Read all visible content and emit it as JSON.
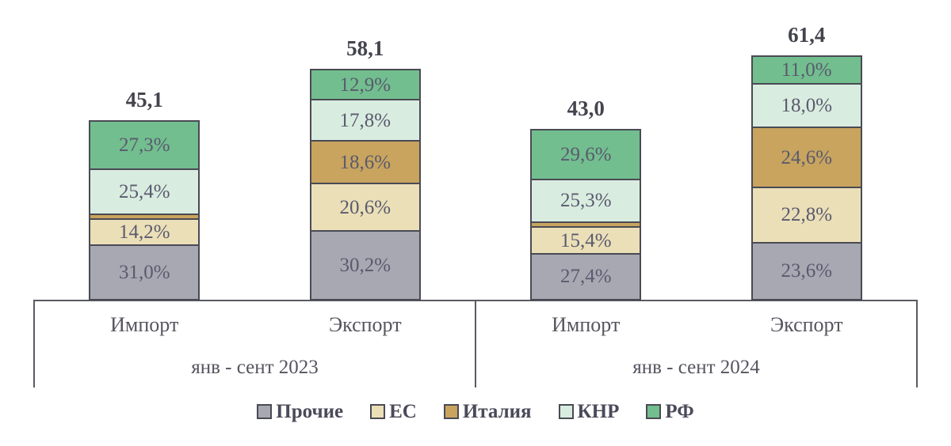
{
  "chart_data": {
    "type": "bar",
    "stacked": true,
    "value_format": "percent-inside, total-above",
    "series": [
      "Прочие",
      "ЕС",
      "Италия",
      "КНР",
      "РФ"
    ],
    "series_colors": {
      "Прочие": "#a8a8b3",
      "ЕС": "#ebdfb8",
      "Италия": "#c8a45e",
      "КНР": "#d9ece0",
      "РФ": "#72be8f"
    },
    "colors": {
      "segment_border": "#4a4a54",
      "segment_text": "#5a5a6e",
      "total_text": "#44444e",
      "axis_line": "#5a5a62",
      "axis_text": "#55555f",
      "legend_text": "#4a4a5a"
    },
    "legend": {
      "position": "bottom",
      "entries": [
        "Прочие",
        "ЕС",
        "Италия",
        "КНР",
        "РФ"
      ]
    },
    "groups": [
      {
        "label": "янв - сент 2023",
        "bars": [
          {
            "category": "Импорт",
            "total": 45.1,
            "total_label": "45,1",
            "segments": [
              {
                "name": "Прочие",
                "pct": 31.0,
                "label": "31,0%"
              },
              {
                "name": "ЕС",
                "pct": 14.2,
                "label": "14,2%"
              },
              {
                "name": "Италия",
                "pct": 2.1,
                "label": ""
              },
              {
                "name": "КНР",
                "pct": 25.4,
                "label": "25,4%"
              },
              {
                "name": "РФ",
                "pct": 27.3,
                "label": "27,3%"
              }
            ]
          },
          {
            "category": "Экспорт",
            "total": 58.1,
            "total_label": "58,1",
            "segments": [
              {
                "name": "Прочие",
                "pct": 30.2,
                "label": "30,2%"
              },
              {
                "name": "ЕС",
                "pct": 20.6,
                "label": "20,6%"
              },
              {
                "name": "Италия",
                "pct": 18.6,
                "label": "18,6%"
              },
              {
                "name": "КНР",
                "pct": 17.8,
                "label": "17,8%"
              },
              {
                "name": "РФ",
                "pct": 12.9,
                "label": "12,9%"
              }
            ]
          }
        ]
      },
      {
        "label": "янв - сент 2024",
        "bars": [
          {
            "category": "Импорт",
            "total": 43.0,
            "total_label": "43,0",
            "segments": [
              {
                "name": "Прочие",
                "pct": 27.4,
                "label": "27,4%"
              },
              {
                "name": "ЕС",
                "pct": 15.4,
                "label": "15,4%"
              },
              {
                "name": "Италия",
                "pct": 2.3,
                "label": ""
              },
              {
                "name": "КНР",
                "pct": 25.3,
                "label": "25,3%"
              },
              {
                "name": "РФ",
                "pct": 29.6,
                "label": "29,6%"
              }
            ]
          },
          {
            "category": "Экспорт",
            "total": 61.4,
            "total_label": "61,4",
            "segments": [
              {
                "name": "Прочие",
                "pct": 23.6,
                "label": "23,6%"
              },
              {
                "name": "ЕС",
                "pct": 22.8,
                "label": "22,8%"
              },
              {
                "name": "Италия",
                "pct": 24.6,
                "label": "24,6%"
              },
              {
                "name": "КНР",
                "pct": 18.0,
                "label": "18,0%"
              },
              {
                "name": "РФ",
                "pct": 11.0,
                "label": "11,0%"
              }
            ]
          }
        ]
      }
    ]
  }
}
